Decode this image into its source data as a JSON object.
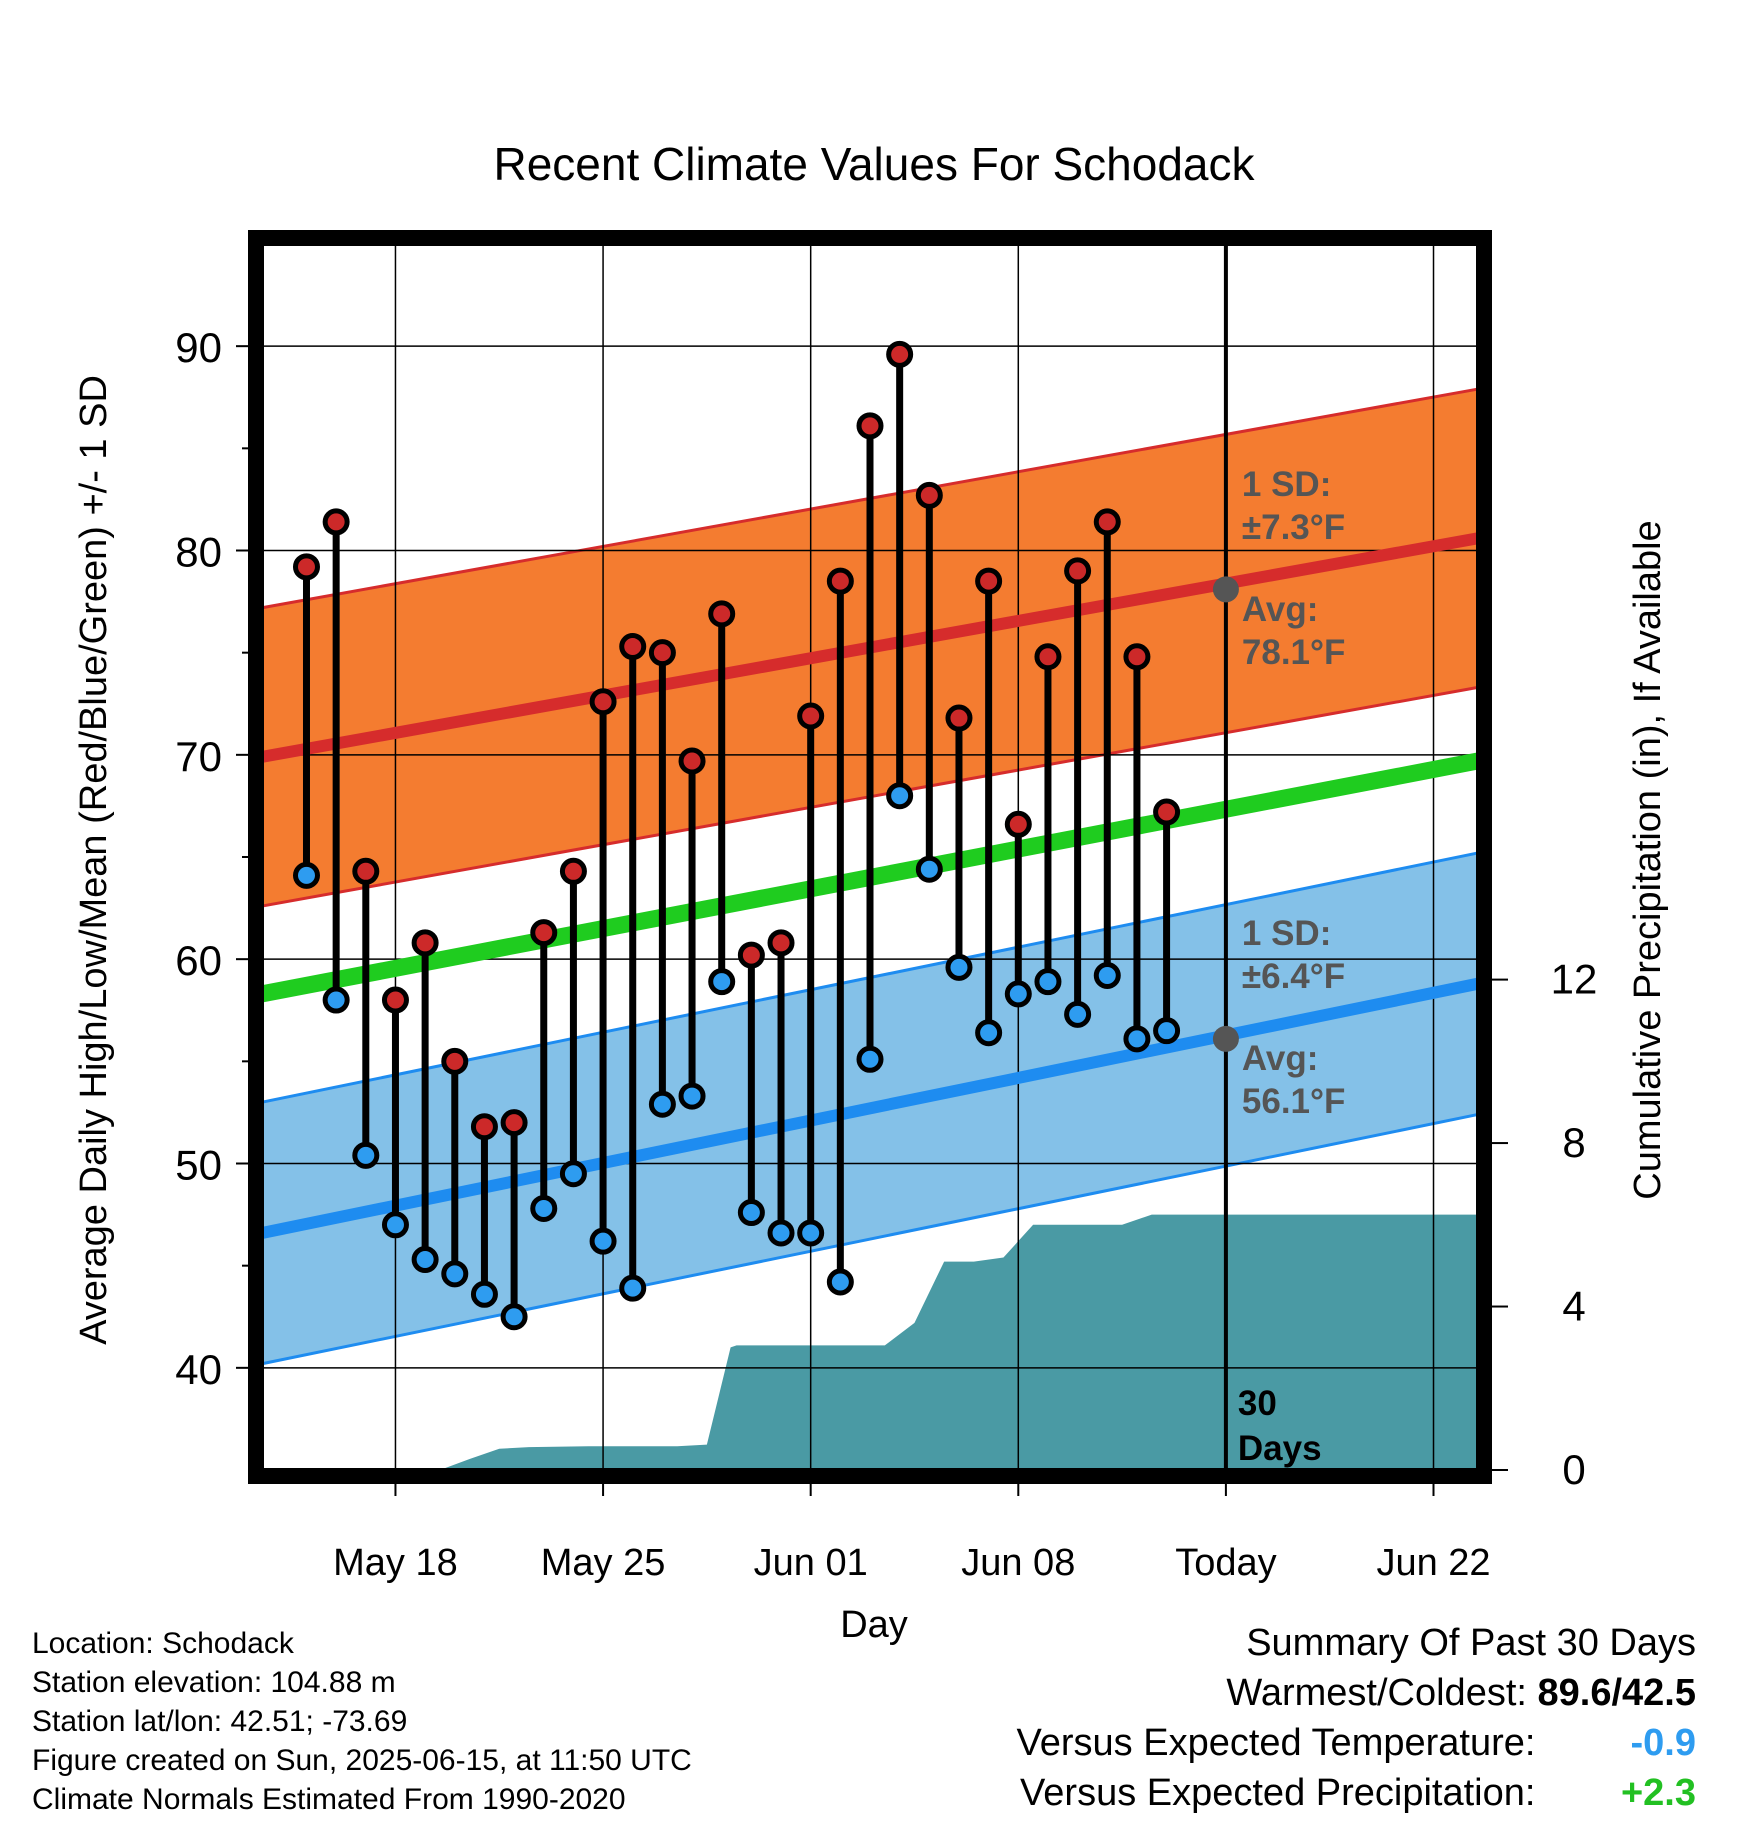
{
  "chart_data": {
    "type": "line",
    "title": "Recent Climate Values For Schodack",
    "xlabel": "Day",
    "ylabel": "Average Daily High/Low/Mean (Red/Blue/Green) +/- 1 SD",
    "y2label": "Cumulative Precipitation (in), If Available",
    "x_start_date": "2025-05-14",
    "x_range_days": [
      -0.5,
      40.5
    ],
    "ylim": [
      35,
      95
    ],
    "y_ticks": [
      40,
      50,
      60,
      70,
      80,
      90
    ],
    "y2lim": [
      0,
      30
    ],
    "y2_ticks": [
      0,
      4,
      8,
      12
    ],
    "x_tick_days": [
      4,
      11,
      18,
      25,
      32,
      39
    ],
    "x_tick_labels": [
      "May 18",
      "May 25",
      "Jun 01",
      "Jun 08",
      "Today",
      "Jun 22"
    ],
    "grid": true,
    "today_day": 32,
    "today_label_line1": "30",
    "today_label_line2": "Days",
    "normal_high": {
      "start": 69.9,
      "end": 80.6,
      "sd": 7.3,
      "sd_label": "1 SD:",
      "sd_text": "±7.3°F",
      "avg_label": "Avg:",
      "avg_text": "78.1°F",
      "avg_value": 78.1
    },
    "normal_low": {
      "start": 46.6,
      "end": 58.8,
      "sd": 6.4,
      "sd_label": "1 SD:",
      "sd_text": "±6.4°F",
      "avg_label": "Avg:",
      "avg_text": "56.1°F",
      "avg_value": 56.1
    },
    "normal_mean": {
      "start": 58.3,
      "end": 69.7
    },
    "daily_highs": [
      79.2,
      81.4,
      64.3,
      58.0,
      60.8,
      55.0,
      51.8,
      52.0,
      61.3,
      64.3,
      72.6,
      75.3,
      75.0,
      69.7,
      76.9,
      60.2,
      60.8,
      71.9,
      78.5,
      86.1,
      89.6,
      82.7,
      71.8,
      78.5,
      66.6,
      74.8,
      79.0,
      81.4,
      74.8,
      67.2
    ],
    "daily_lows": [
      64.1,
      58.0,
      50.4,
      47.0,
      45.3,
      44.6,
      43.6,
      42.5,
      47.8,
      49.5,
      46.2,
      43.9,
      52.9,
      53.3,
      58.9,
      47.6,
      46.6,
      46.6,
      44.2,
      55.1,
      68.0,
      64.4,
      59.6,
      56.4,
      58.3,
      58.9,
      57.3,
      59.2,
      56.1,
      56.5
    ],
    "cumulative_precip": [
      [
        -0.5,
        0.0
      ],
      [
        5.5,
        0.0
      ],
      [
        6.5,
        0.27
      ],
      [
        7.5,
        0.52
      ],
      [
        8.5,
        0.56
      ],
      [
        10.5,
        0.58
      ],
      [
        13.5,
        0.58
      ],
      [
        14.5,
        0.62
      ],
      [
        15.3,
        3.0
      ],
      [
        15.5,
        3.05
      ],
      [
        19.5,
        3.05
      ],
      [
        20.5,
        3.05
      ],
      [
        21.5,
        3.6
      ],
      [
        22.5,
        5.1
      ],
      [
        23.5,
        5.1
      ],
      [
        24.5,
        5.2
      ],
      [
        25.5,
        6.0
      ],
      [
        26.5,
        6.0
      ],
      [
        27.5,
        6.0
      ],
      [
        28.5,
        6.0
      ],
      [
        29.5,
        6.25
      ],
      [
        40.5,
        6.25
      ]
    ]
  },
  "info": {
    "location": "Location: Schodack",
    "elevation": "Station elevation: 104.88 m",
    "latlon": "Station lat/lon: 42.51; -73.69",
    "created": "Figure created on Sun, 2025-06-15, at 11:50 UTC",
    "normals": "Climate Normals Estimated From 1990-2020"
  },
  "summary": {
    "title": "Summary Of Past 30 Days",
    "warmest_label": "Warmest/Coldest:",
    "warmest_value": "89.6/42.5",
    "temp_label": "Versus Expected Temperature:",
    "temp_value": "-0.9",
    "precip_label": "Versus Expected Precipitation:",
    "precip_value": "+2.3"
  },
  "colors": {
    "high_band": "#F47C30",
    "high_line": "#D62C2C",
    "low_band": "#84C1E8",
    "low_line": "#1E8CF0",
    "mean_line": "#1FCC1F",
    "precip": "#4A9AA4",
    "high_dot": "#CC2929",
    "low_dot": "#2E9CF0",
    "annotation": "#555555",
    "temp_value": "#2E9CF0",
    "precip_value": "#22C022"
  }
}
